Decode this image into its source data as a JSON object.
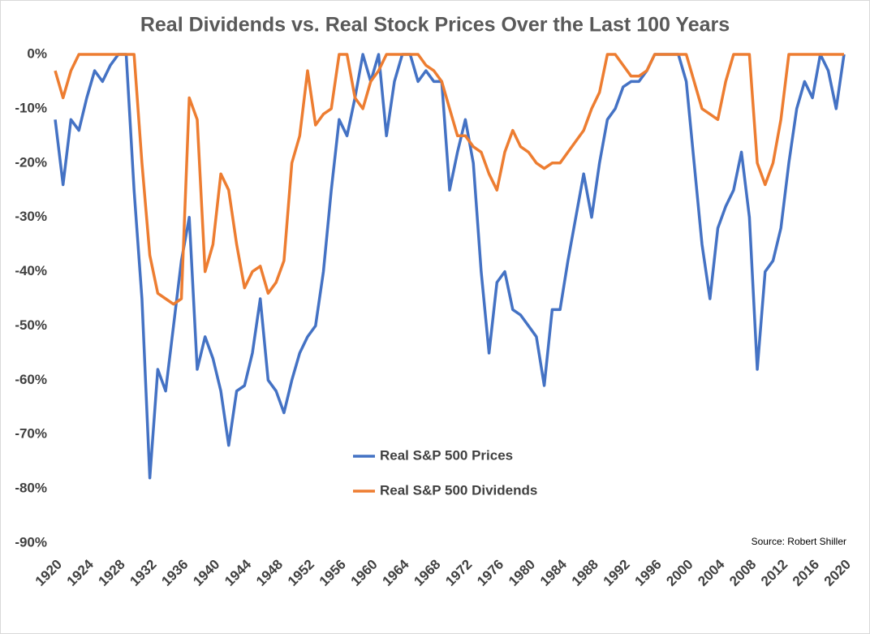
{
  "chart_data": {
    "type": "line",
    "title": "Real Dividends vs. Real Stock Prices Over the Last 100 Years",
    "annotation": "Source: Robert Shiller",
    "x": [
      1920,
      1921,
      1922,
      1923,
      1924,
      1925,
      1926,
      1927,
      1928,
      1929,
      1930,
      1931,
      1932,
      1933,
      1934,
      1935,
      1936,
      1937,
      1938,
      1939,
      1940,
      1941,
      1942,
      1943,
      1944,
      1945,
      1946,
      1947,
      1948,
      1949,
      1950,
      1951,
      1952,
      1953,
      1954,
      1955,
      1956,
      1957,
      1958,
      1959,
      1960,
      1961,
      1962,
      1963,
      1964,
      1965,
      1966,
      1967,
      1968,
      1969,
      1970,
      1971,
      1972,
      1973,
      1974,
      1975,
      1976,
      1977,
      1978,
      1979,
      1980,
      1981,
      1982,
      1983,
      1984,
      1985,
      1986,
      1987,
      1988,
      1989,
      1990,
      1991,
      1992,
      1993,
      1994,
      1995,
      1996,
      1997,
      1998,
      1999,
      2000,
      2001,
      2002,
      2003,
      2004,
      2005,
      2006,
      2007,
      2008,
      2009,
      2010,
      2011,
      2012,
      2013,
      2014,
      2015,
      2016,
      2017,
      2018,
      2019,
      2020
    ],
    "series": [
      {
        "name": "Real S&P 500 Prices",
        "color": "#4472c4",
        "values": [
          -12,
          -24,
          -12,
          -14,
          -8,
          -3,
          -5,
          -2,
          0,
          0,
          -25,
          -45,
          -78,
          -58,
          -62,
          -50,
          -38,
          -30,
          -58,
          -52,
          -56,
          -62,
          -72,
          -62,
          -61,
          -55,
          -45,
          -60,
          -62,
          -66,
          -60,
          -55,
          -52,
          -50,
          -40,
          -25,
          -12,
          -15,
          -8,
          0,
          -5,
          0,
          -15,
          -5,
          0,
          0,
          -5,
          -3,
          -5,
          -5,
          -25,
          -18,
          -12,
          -20,
          -40,
          -55,
          -42,
          -40,
          -47,
          -48,
          -50,
          -52,
          -61,
          -47,
          -47,
          -38,
          -30,
          -22,
          -30,
          -20,
          -12,
          -10,
          -6,
          -5,
          -5,
          -3,
          0,
          0,
          0,
          0,
          -5,
          -20,
          -35,
          -45,
          -32,
          -28,
          -25,
          -18,
          -30,
          -58,
          -40,
          -38,
          -32,
          -20,
          -10,
          -5,
          -8,
          0,
          -3,
          -10,
          0
        ]
      },
      {
        "name": "Real S&P 500 Dividends",
        "color": "#ed7d31",
        "values": [
          -3,
          -8,
          -3,
          0,
          0,
          0,
          0,
          0,
          0,
          0,
          0,
          -20,
          -37,
          -44,
          -45,
          -46,
          -45,
          -8,
          -12,
          -40,
          -35,
          -22,
          -25,
          -35,
          -43,
          -40,
          -39,
          -44,
          -42,
          -38,
          -20,
          -15,
          -3,
          -13,
          -11,
          -10,
          0,
          0,
          -8,
          -10,
          -5,
          -3,
          0,
          0,
          0,
          0,
          0,
          -2,
          -3,
          -5,
          -10,
          -15,
          -15,
          -17,
          -18,
          -22,
          -25,
          -18,
          -14,
          -17,
          -18,
          -20,
          -21,
          -20,
          -20,
          -18,
          -16,
          -14,
          -10,
          -7,
          0,
          0,
          -2,
          -4,
          -4,
          -3,
          0,
          0,
          0,
          0,
          0,
          -5,
          -10,
          -11,
          -12,
          -5,
          0,
          0,
          0,
          -20,
          -24,
          -20,
          -12,
          0,
          0,
          0,
          0,
          0,
          0,
          0,
          0
        ]
      }
    ],
    "xlim": [
      1920,
      2020
    ],
    "xticks": [
      1920,
      1924,
      1928,
      1932,
      1936,
      1940,
      1944,
      1948,
      1952,
      1956,
      1960,
      1964,
      1968,
      1972,
      1976,
      1980,
      1984,
      1988,
      1992,
      1996,
      2000,
      2004,
      2008,
      2012,
      2016,
      2020
    ],
    "ylim": [
      -90,
      0
    ],
    "yticks": [
      {
        "value": 0,
        "label": "0%"
      },
      {
        "value": -10,
        "label": "-10%"
      },
      {
        "value": -20,
        "label": "-20%"
      },
      {
        "value": -30,
        "label": "-30%"
      },
      {
        "value": -40,
        "label": "-40%"
      },
      {
        "value": -50,
        "label": "-50%"
      },
      {
        "value": -60,
        "label": "-60%"
      },
      {
        "value": -70,
        "label": "-70%"
      },
      {
        "value": -80,
        "label": "-80%"
      },
      {
        "value": -90,
        "label": "-90%"
      }
    ],
    "grid": false,
    "legend": "center"
  }
}
